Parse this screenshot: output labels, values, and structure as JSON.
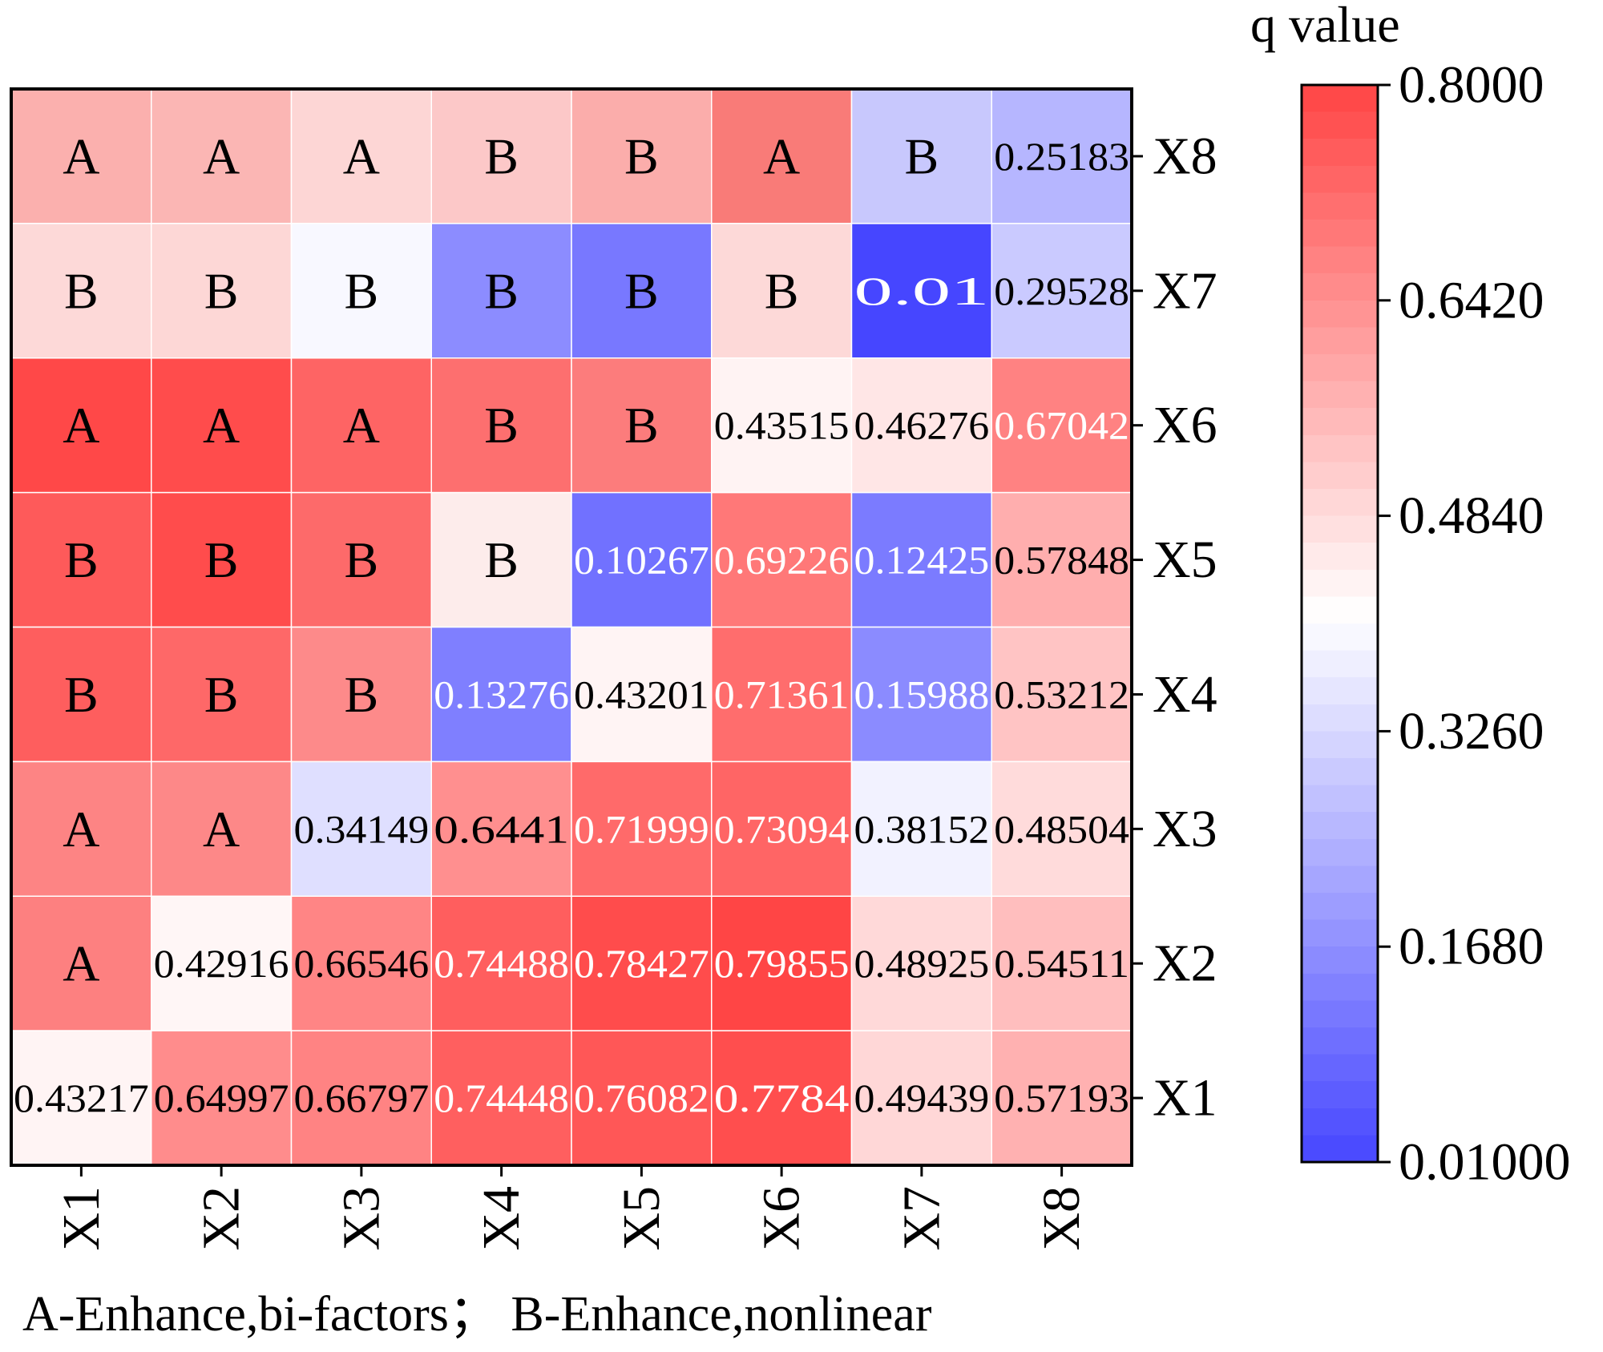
{
  "chart_data": {
    "type": "heatmap",
    "title": "",
    "colorbar_label": "q value",
    "colorbar_ticks": [
      "0.8000",
      "0.6420",
      "0.4840",
      "0.3260",
      "0.1680",
      "0.01000"
    ],
    "colorbar_tick_values": [
      0.8,
      0.642,
      0.484,
      0.326,
      0.168,
      0.01
    ],
    "color_range": [
      0.01,
      0.8
    ],
    "colormap": {
      "low": "#4646ff",
      "mid": "#ffffff",
      "high": "#ff4444",
      "mid_value": 0.41
    },
    "x_labels": [
      "X1",
      "X2",
      "X3",
      "X4",
      "X5",
      "X6",
      "X7",
      "X8"
    ],
    "y_labels_top_to_bottom": [
      "X8",
      "X7",
      "X6",
      "X5",
      "X4",
      "X3",
      "X2",
      "X1"
    ],
    "rows": [
      {
        "label": "X8",
        "cells": [
          {
            "text": "A",
            "color": "#fbb0ae"
          },
          {
            "text": "A",
            "color": "#fbb6b4"
          },
          {
            "text": "A",
            "color": "#fdd6d5"
          },
          {
            "text": "B",
            "color": "#fcc8c8"
          },
          {
            "text": "B",
            "color": "#fbadab"
          },
          {
            "text": "A",
            "color": "#f97b78"
          },
          {
            "text": "B",
            "color": "#c8c8fd"
          },
          {
            "text": "0.25183",
            "value": 0.25183
          }
        ]
      },
      {
        "label": "X7",
        "cells": [
          {
            "text": "B",
            "color": "#fdd9d8"
          },
          {
            "text": "B",
            "color": "#fdd7d6"
          },
          {
            "text": "B",
            "color": "#f8f8ff"
          },
          {
            "text": "B",
            "color": "#8c8cff"
          },
          {
            "text": "B",
            "color": "#7878ff"
          },
          {
            "text": "B",
            "color": "#fdd9d8"
          },
          {
            "text": "0.01",
            "value": 0.01
          },
          {
            "text": "0.29528",
            "value": 0.29528
          }
        ]
      },
      {
        "label": "X6",
        "cells": [
          {
            "text": "A",
            "color": "#ff4848"
          },
          {
            "text": "A",
            "color": "#ff4c4c"
          },
          {
            "text": "A",
            "color": "#fe6464"
          },
          {
            "text": "B",
            "color": "#fd6f6f"
          },
          {
            "text": "B",
            "color": "#fc7c7c"
          },
          {
            "text": "0.43515",
            "value": 0.43515
          },
          {
            "text": "0.46276",
            "value": 0.46276
          },
          {
            "text": "0.67042",
            "value": 0.67042
          }
        ]
      },
      {
        "label": "X5",
        "cells": [
          {
            "text": "B",
            "color": "#fe5a5a"
          },
          {
            "text": "B",
            "color": "#ff4c4c"
          },
          {
            "text": "B",
            "color": "#fd6a6a"
          },
          {
            "text": "B",
            "color": "#fdeceb"
          },
          {
            "text": "0.10267",
            "value": 0.10267
          },
          {
            "text": "0.69226",
            "value": 0.69226
          },
          {
            "text": "0.12425",
            "value": 0.12425
          },
          {
            "text": "0.57848",
            "value": 0.57848
          }
        ]
      },
      {
        "label": "X4",
        "cells": [
          {
            "text": "B",
            "color": "#fe5e5e"
          },
          {
            "text": "B",
            "color": "#fe6868"
          },
          {
            "text": "B",
            "color": "#fd8a8a"
          },
          {
            "text": "0.13276",
            "value": 0.13276
          },
          {
            "text": "0.43201",
            "value": 0.43201
          },
          {
            "text": "0.71361",
            "value": 0.71361
          },
          {
            "text": "0.15988",
            "value": 0.15988
          },
          {
            "text": "0.53212",
            "value": 0.53212
          }
        ]
      },
      {
        "label": "X3",
        "cells": [
          {
            "text": "A",
            "color": "#fd8484"
          },
          {
            "text": "A",
            "color": "#fd8888"
          },
          {
            "text": "0.34149",
            "value": 0.34149
          },
          {
            "text": "0.6441",
            "value": 0.6441
          },
          {
            "text": "0.71999",
            "value": 0.71999
          },
          {
            "text": "0.73094",
            "value": 0.73094
          },
          {
            "text": "0.38152",
            "value": 0.38152
          },
          {
            "text": "0.48504",
            "value": 0.48504
          }
        ]
      },
      {
        "label": "X2",
        "cells": [
          {
            "text": "A",
            "color": "#fd8080"
          },
          {
            "text": "0.42916",
            "value": 0.42916
          },
          {
            "text": "0.66546",
            "value": 0.66546
          },
          {
            "text": "0.74488",
            "value": 0.74488
          },
          {
            "text": "0.78427",
            "value": 0.78427
          },
          {
            "text": "0.79855",
            "value": 0.79855
          },
          {
            "text": "0.48925",
            "value": 0.48925
          },
          {
            "text": "0.54511",
            "value": 0.54511
          }
        ]
      },
      {
        "label": "X1",
        "cells": [
          {
            "text": "0.43217",
            "value": 0.43217
          },
          {
            "text": "0.64997",
            "value": 0.64997
          },
          {
            "text": "0.66797",
            "value": 0.66797
          },
          {
            "text": "0.74448",
            "value": 0.74448
          },
          {
            "text": "0.76082",
            "value": 0.76082
          },
          {
            "text": "0.7784",
            "value": 0.7784
          },
          {
            "text": "0.49439",
            "value": 0.49439
          },
          {
            "text": "0.57193",
            "value": 0.57193
          }
        ]
      }
    ],
    "legend_note": "A-Enhance,bi-factors；  B-Enhance,nonlinear"
  }
}
